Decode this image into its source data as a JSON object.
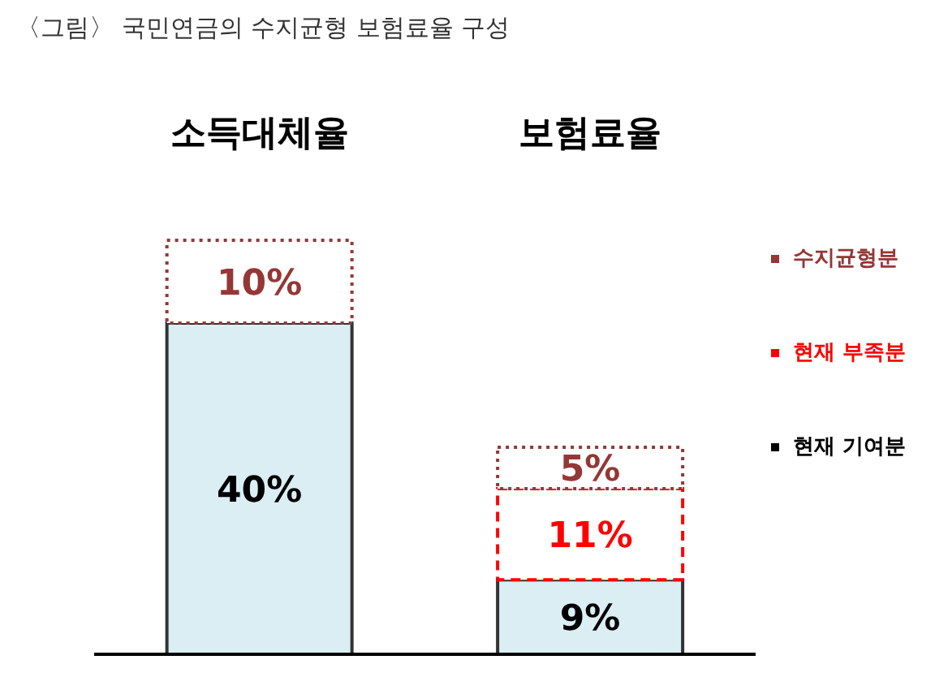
{
  "chart_data": {
    "type": "bar",
    "title": "〈그림〉 국민연금의 수지균형 보험료율 구성",
    "categories": [
      "소득대체율",
      "보험료율"
    ],
    "stacked": true,
    "legend": "right",
    "series": [
      {
        "name": "현재 기여분",
        "color": "#dbeef4",
        "values": [
          40,
          9
        ],
        "value_labels": [
          "40%",
          "9%"
        ],
        "line_style": "solid"
      },
      {
        "name": "현재 부족분",
        "color": "#ff0000",
        "values": [
          null,
          11
        ],
        "value_labels": [
          null,
          "11%"
        ],
        "line_style": "dashed"
      },
      {
        "name": "수지균형분",
        "color": "#953735",
        "values": [
          10,
          5
        ],
        "value_labels": [
          "10%",
          "5%"
        ],
        "line_style": "dotted"
      }
    ]
  }
}
